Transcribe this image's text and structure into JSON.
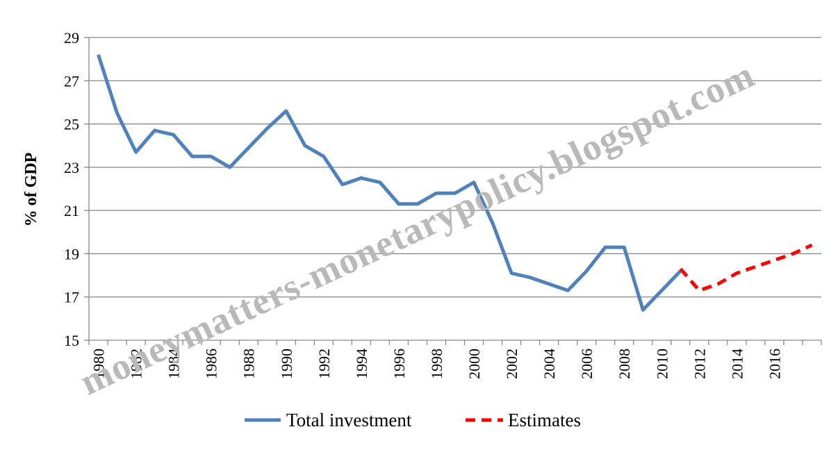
{
  "chart_data": {
    "type": "line",
    "title": "",
    "xlabel": "",
    "ylabel": "% of GDP",
    "ylim": [
      15,
      29
    ],
    "yticks": [
      15,
      17,
      19,
      21,
      23,
      25,
      27,
      29
    ],
    "xlim": [
      1980,
      2018
    ],
    "xticks": [
      1980,
      1982,
      1984,
      1986,
      1988,
      1990,
      1992,
      1994,
      1996,
      1998,
      2000,
      2002,
      2004,
      2006,
      2008,
      2010,
      2012,
      2014,
      2016
    ],
    "grid": "horizontal",
    "legend_position": "bottom",
    "series": [
      {
        "name": "Total investment",
        "color": "#4f81bd",
        "style": "solid",
        "x": [
          1980,
          1981,
          1982,
          1983,
          1984,
          1985,
          1986,
          1987,
          1988,
          1989,
          1990,
          1991,
          1992,
          1993,
          1994,
          1995,
          1996,
          1997,
          1998,
          1999,
          2000,
          2001,
          2002,
          2003,
          2004,
          2005,
          2006,
          2007,
          2008,
          2009,
          2010,
          2011
        ],
        "y": [
          28.2,
          25.5,
          23.7,
          24.7,
          24.5,
          23.5,
          23.5,
          23.0,
          23.9,
          24.8,
          25.6,
          24.0,
          23.5,
          22.2,
          22.5,
          22.3,
          21.3,
          21.3,
          21.8,
          21.8,
          22.3,
          20.4,
          18.1,
          17.9,
          17.6,
          17.3,
          18.2,
          19.3,
          19.3,
          16.4,
          17.3,
          18.2
        ]
      },
      {
        "name": "Estimates",
        "color": "#ff0000",
        "style": "dashed",
        "x": [
          2011,
          2012,
          2013,
          2014,
          2015,
          2016,
          2017,
          2018
        ],
        "y": [
          18.3,
          17.3,
          17.6,
          18.1,
          18.4,
          18.7,
          19.0,
          19.4
        ]
      }
    ]
  },
  "watermark": {
    "text": "moneymatters-monetarypolicy.blogspot.com",
    "color": "#b9b9b9"
  },
  "colors": {
    "grid": "#868686",
    "axis": "#868686"
  }
}
